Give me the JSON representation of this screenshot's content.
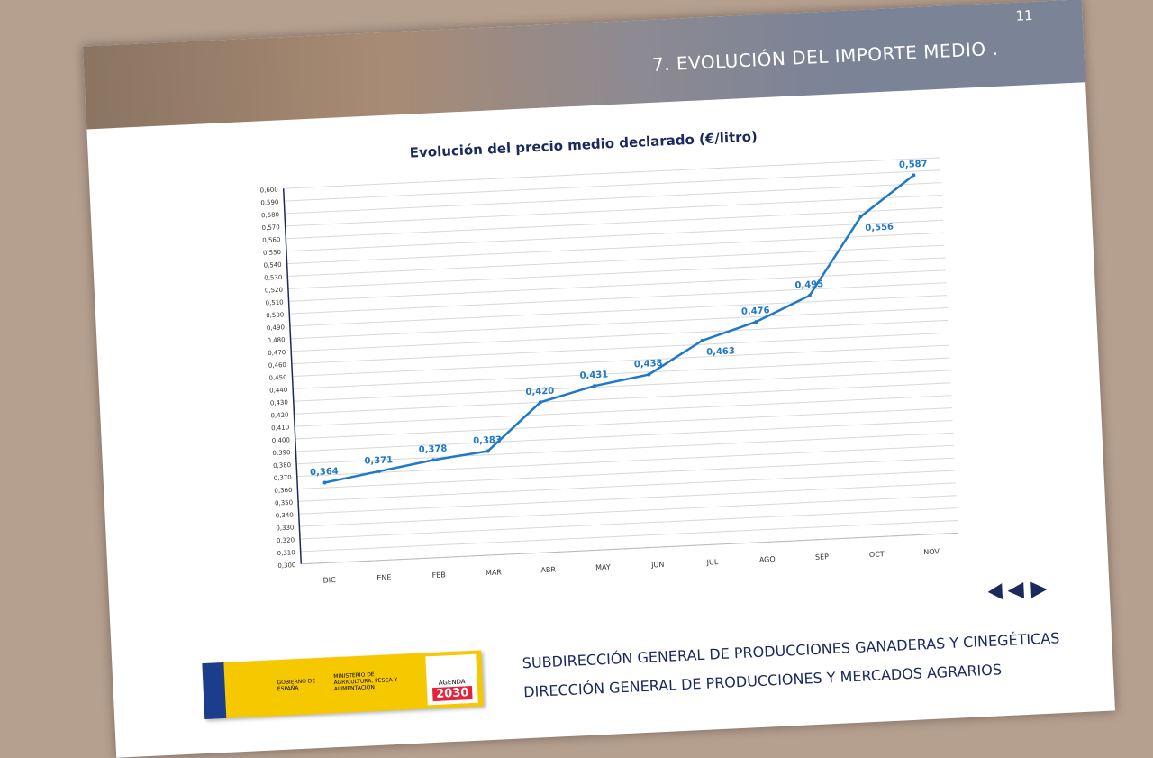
{
  "page_number": "11",
  "header": {
    "title": "7.  EVOLUCIÓN DEL IMPORTE MEDIO ."
  },
  "chart_data": {
    "type": "line",
    "title": "Evolución del precio medio declarado (€/litro)",
    "categories": [
      "DIC",
      "ENE",
      "FEB",
      "MAR",
      "ABR",
      "MAY",
      "JUN",
      "JUL",
      "AGO",
      "SEP",
      "OCT",
      "NOV"
    ],
    "series": [
      {
        "name": "Precio medio",
        "color": "#1f78c8",
        "values": [
          0.364,
          0.371,
          0.378,
          0.383,
          0.42,
          0.431,
          0.438,
          0.463,
          0.476,
          0.495,
          0.556,
          0.587
        ],
        "value_labels": [
          "0,364",
          "0,371",
          "0,378",
          "0,383",
          "0,420",
          "0,431",
          "0,438",
          "0,463",
          "0,476",
          "0,495",
          "0,556",
          "0,587"
        ]
      }
    ],
    "ylim": [
      0.3,
      0.6
    ],
    "yticks": [
      {
        "value": 0.3,
        "label": "0,300"
      },
      {
        "value": 0.31,
        "label": "0,310"
      },
      {
        "value": 0.32,
        "label": "0,320"
      },
      {
        "value": 0.33,
        "label": "0,330"
      },
      {
        "value": 0.34,
        "label": "0,340"
      },
      {
        "value": 0.35,
        "label": "0,350"
      },
      {
        "value": 0.36,
        "label": "0,360"
      },
      {
        "value": 0.37,
        "label": "0,370"
      },
      {
        "value": 0.38,
        "label": "0,380"
      },
      {
        "value": 0.39,
        "label": "0,390"
      },
      {
        "value": 0.4,
        "label": "0,400"
      },
      {
        "value": 0.41,
        "label": "0,410"
      },
      {
        "value": 0.42,
        "label": "0,420"
      },
      {
        "value": 0.43,
        "label": "0,430"
      },
      {
        "value": 0.44,
        "label": "0,440"
      },
      {
        "value": 0.45,
        "label": "0,450"
      },
      {
        "value": 0.46,
        "label": "0,460"
      },
      {
        "value": 0.47,
        "label": "0,470"
      },
      {
        "value": 0.48,
        "label": "0,480"
      },
      {
        "value": 0.49,
        "label": "0,490"
      },
      {
        "value": 0.5,
        "label": "0,500"
      },
      {
        "value": 0.51,
        "label": "0,510"
      },
      {
        "value": 0.52,
        "label": "0,520"
      },
      {
        "value": 0.53,
        "label": "0,530"
      },
      {
        "value": 0.54,
        "label": "0,540"
      },
      {
        "value": 0.55,
        "label": "0,550"
      },
      {
        "value": 0.56,
        "label": "0,560"
      },
      {
        "value": 0.57,
        "label": "0,570"
      },
      {
        "value": 0.58,
        "label": "0,580"
      },
      {
        "value": 0.59,
        "label": "0,590"
      },
      {
        "value": 0.6,
        "label": "0,600"
      }
    ],
    "grid": true
  },
  "logo": {
    "government": "GOBIERNO DE ESPAÑA",
    "ministry": "MINISTERIO DE AGRICULTURA, PESCA Y ALIMENTACIÓN",
    "agenda": "AGENDA",
    "year": "2030"
  },
  "footer": {
    "line1": "SUBDIRECCIÓN GENERAL DE PRODUCCIONES GANADERAS Y CINEGÉTICAS",
    "line2": "DIRECCIÓN GENERAL DE PRODUCCIONES Y MERCADOS AGRARIOS"
  }
}
